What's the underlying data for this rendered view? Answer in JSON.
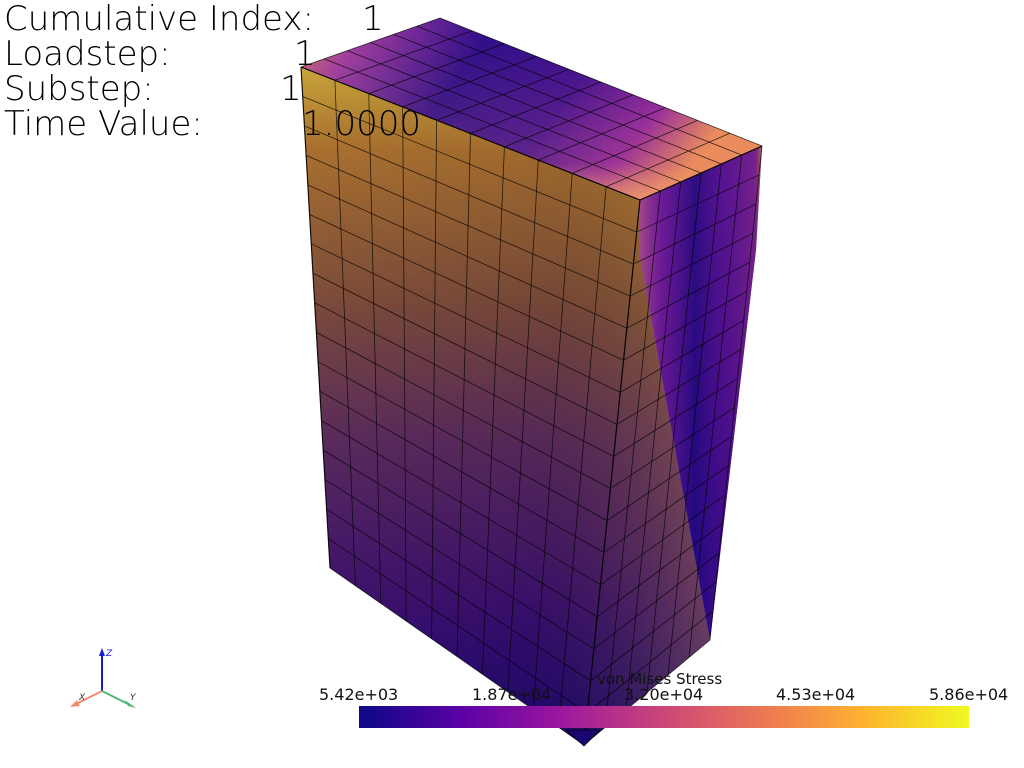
{
  "info": {
    "cumulative_index_label": "Cumulative Index:",
    "cumulative_index_value": "1",
    "loadstep_label": "Loadstep:",
    "loadstep_value": "1",
    "substep_label": "Substep:",
    "substep_value": "1",
    "time_value_label": "Time Value:",
    "time_value_value": "1.0000"
  },
  "colorbar": {
    "title": "von Mises Stress",
    "ticks": [
      "5.42e+03",
      "1.87e+04",
      "3.20e+04",
      "4.53e+04",
      "5.86e+04"
    ],
    "colormap": "plasma",
    "colors": [
      "#0d0887",
      "#5c01a6",
      "#9c179e",
      "#cc4778",
      "#ed7953",
      "#fdb42f",
      "#f0f921"
    ]
  },
  "axes": {
    "x_label": "X",
    "y_label": "Y",
    "z_label": "Z",
    "x_color": "#f08a73",
    "y_color": "#52b87a",
    "z_color": "#1a1adb"
  },
  "mesh": {
    "edge_color": "#000000",
    "top_divisions_a": 10,
    "top_divisions_b": 6,
    "height_divisions": 17
  }
}
